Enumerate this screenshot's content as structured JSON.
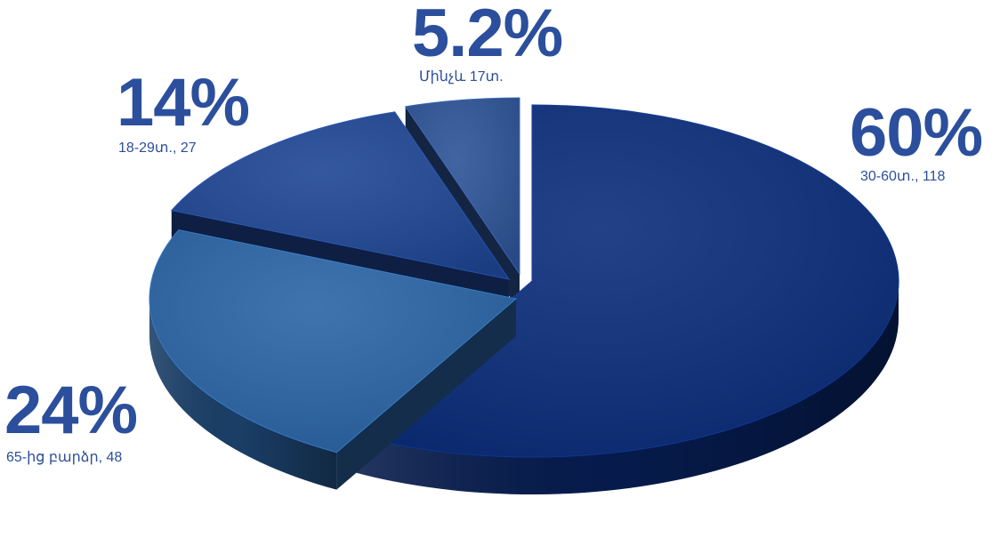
{
  "chart_data": {
    "type": "pie",
    "style": "3d-exploded",
    "slices": [
      {
        "percent": "60%",
        "value": 60,
        "label": "30-60տ., 118",
        "color": "#0a2c7a"
      },
      {
        "percent": "24%",
        "value": 24,
        "label": "65-ից բարձր, 48",
        "color": "#2a64a5"
      },
      {
        "percent": "14%",
        "value": 14,
        "label": "18-29տ., 27",
        "color": "#1e4594"
      },
      {
        "percent": "5.2%",
        "value": 5.2,
        "label": "Մինչև 17տ.",
        "color": "#2d5396"
      }
    ]
  }
}
